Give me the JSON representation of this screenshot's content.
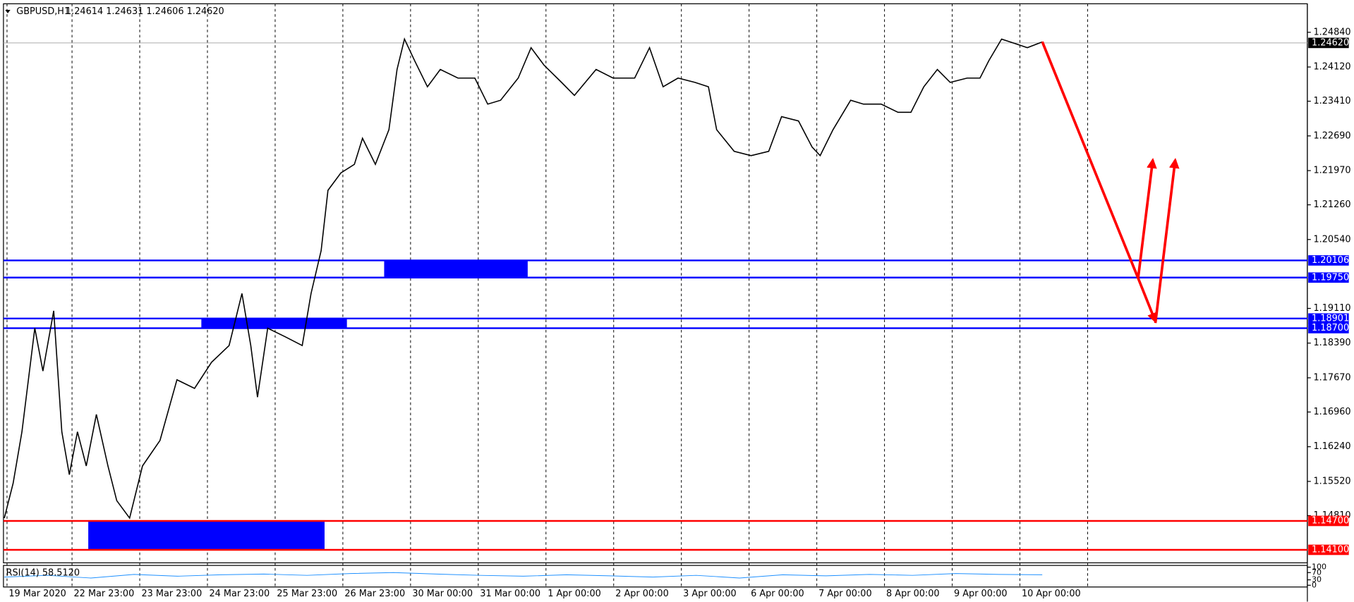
{
  "chart_data": {
    "type": "line",
    "symbol": "GBPUSD,H1",
    "ohlc": "1.24614 1.24631 1.24606 1.24620",
    "xlim": [
      0,
      19.22
    ],
    "ylim": [
      1.1383,
      1.2536
    ],
    "xticks": [
      {
        "value": 0.04,
        "label": "19 Mar 2020"
      },
      {
        "value": 1,
        "label": "22 Mar 23:00"
      },
      {
        "value": 2,
        "label": "23 Mar 23:00"
      },
      {
        "value": 3,
        "label": "24 Mar 23:00"
      },
      {
        "value": 4,
        "label": "25 Mar 23:00"
      },
      {
        "value": 5,
        "label": "26 Mar 23:00"
      },
      {
        "value": 6,
        "label": "30 Mar 00:00"
      },
      {
        "value": 7,
        "label": "31 Mar 00:00"
      },
      {
        "value": 8,
        "label": "1 Apr 00:00"
      },
      {
        "value": 9,
        "label": "2 Apr 00:00"
      },
      {
        "value": 10,
        "label": "3 Apr 00:00"
      },
      {
        "value": 11,
        "label": "6 Apr 00:00"
      },
      {
        "value": 12,
        "label": "7 Apr 00:00"
      },
      {
        "value": 13,
        "label": "8 Apr 00:00"
      },
      {
        "value": 14,
        "label": "9 Apr 00:00"
      },
      {
        "value": 15,
        "label": "10 Apr 00:00"
      },
      {
        "value": 16,
        "label": null
      }
    ],
    "yticks": [
      {
        "value": 1.2484,
        "label": "1.24840"
      },
      {
        "value": 1.2412,
        "label": "1.24120"
      },
      {
        "value": 1.2341,
        "label": "1.23410"
      },
      {
        "value": 1.2269,
        "label": "1.22690"
      },
      {
        "value": 1.2197,
        "label": "1.21970"
      },
      {
        "value": 1.2126,
        "label": "1.21260"
      },
      {
        "value": 1.2054,
        "label": "1.20540"
      },
      {
        "value": 1.1911,
        "label": "1.19110"
      },
      {
        "value": 1.1839,
        "label": "1.18390"
      },
      {
        "value": 1.1767,
        "label": "1.17670"
      },
      {
        "value": 1.1696,
        "label": "1.16960"
      },
      {
        "value": 1.1624,
        "label": "1.16240"
      },
      {
        "value": 1.1552,
        "label": "1.15520"
      },
      {
        "value": 1.1481,
        "label": "1.14810"
      }
    ],
    "series": [
      {
        "name": "GBPUSD",
        "color": "#000000",
        "x": [
          0,
          0.13,
          0.26,
          0.45,
          0.57,
          0.73,
          0.85,
          0.96,
          1.08,
          1.21,
          1.36,
          1.53,
          1.66,
          1.85,
          2.04,
          2.3,
          2.55,
          2.81,
          3.06,
          3.32,
          3.51,
          3.64,
          3.74,
          3.89,
          4.15,
          4.4,
          4.53,
          4.68,
          4.78,
          4.97,
          5.17,
          5.29,
          5.48,
          5.68,
          5.8,
          5.91,
          6.06,
          6.25,
          6.44,
          6.7,
          6.95,
          7.14,
          7.33,
          7.59,
          7.78,
          7.97,
          8.23,
          8.42,
          8.74,
          8.99,
          9.31,
          9.53,
          9.73,
          9.95,
          10.2,
          10.4,
          10.52,
          10.78,
          11.03,
          11.29,
          11.48,
          11.73,
          11.93,
          12.05,
          12.24,
          12.5,
          12.69,
          12.95,
          13.2,
          13.39,
          13.58,
          13.78,
          13.97,
          14.22,
          14.41,
          14.54,
          14.73,
          14.92,
          15.11,
          15.33
        ],
        "values": [
          1.1476,
          1.1548,
          1.1655,
          1.187,
          1.1781,
          1.1906,
          1.1655,
          1.1566,
          1.1655,
          1.1584,
          1.1691,
          1.1584,
          1.1512,
          1.1476,
          1.1584,
          1.1637,
          1.1763,
          1.1745,
          1.1799,
          1.1834,
          1.1942,
          1.1834,
          1.1727,
          1.187,
          1.1852,
          1.1834,
          1.1942,
          1.2031,
          1.2156,
          1.2192,
          1.221,
          1.2264,
          1.221,
          1.2282,
          1.2407,
          1.247,
          1.2425,
          1.2371,
          1.2407,
          1.2389,
          1.2389,
          1.2335,
          1.2343,
          1.2389,
          1.2452,
          1.2416,
          1.238,
          1.2353,
          1.2407,
          1.2389,
          1.2389,
          1.2452,
          1.2371,
          1.2389,
          1.238,
          1.2371,
          1.2282,
          1.2237,
          1.2228,
          1.2237,
          1.2309,
          1.23,
          1.2246,
          1.2228,
          1.2282,
          1.2343,
          1.2335,
          1.2335,
          1.2318,
          1.2318,
          1.2371,
          1.2407,
          1.238,
          1.2389,
          1.2389,
          1.2425,
          1.247,
          1.2461,
          1.2452,
          1.2464
        ]
      }
    ],
    "last_price": {
      "value": 1.2462,
      "label": "1.24620"
    },
    "levels": [
      {
        "value": 1.20106,
        "label": "1.20106",
        "color": "#0000ff"
      },
      {
        "value": 1.1975,
        "label": "1.19750",
        "color": "#0000ff"
      },
      {
        "value": 1.18901,
        "label": "1.18901",
        "color": "#0000ff"
      },
      {
        "value": 1.187,
        "label": "1.18700",
        "color": "#0000ff"
      },
      {
        "value": 1.147,
        "label": "1.14700",
        "color": "#ff0000"
      },
      {
        "value": 1.141,
        "label": "1.14100",
        "color": "#ff0000"
      }
    ],
    "zones": [
      {
        "x0": 5.61,
        "x1": 7.73,
        "y0": 1.1975,
        "y1": 1.20106,
        "color": "#0000ff"
      },
      {
        "x0": 2.91,
        "x1": 5.06,
        "y0": 1.187,
        "y1": 1.18901,
        "color": "#0000ff"
      },
      {
        "x0": 1.24,
        "x1": 4.73,
        "y0": 1.141,
        "y1": 1.147,
        "color": "#0000ff"
      }
    ],
    "rsi": {
      "label": "RSI(14) 58.5120",
      "color": "#1e90ff",
      "ylim": [
        0,
        100
      ],
      "yticks": [
        100,
        70,
        30,
        0
      ],
      "values": [
        45,
        55,
        40,
        60,
        50,
        58,
        62,
        55,
        65,
        70,
        62,
        55,
        50,
        58,
        52,
        45,
        55,
        40,
        58,
        52,
        60,
        55,
        65,
        60,
        58
      ]
    }
  }
}
